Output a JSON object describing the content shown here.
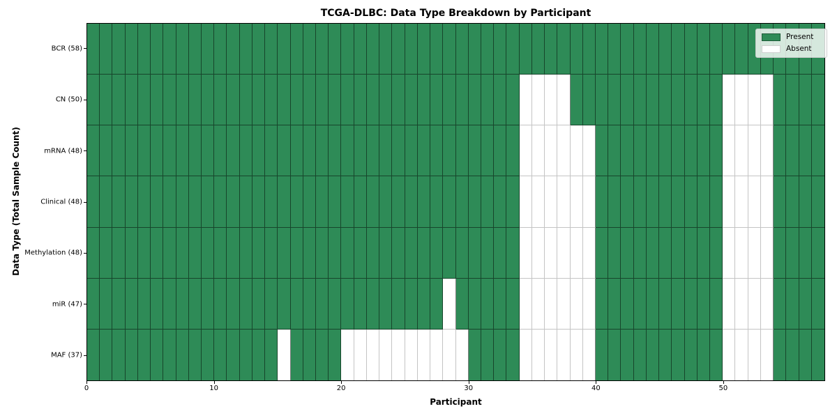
{
  "chart_data": {
    "type": "heatmap",
    "title": "TCGA-DLBC: Data Type Breakdown by Participant",
    "xlabel": "Participant",
    "ylabel": "Data Type (Total Sample Count)",
    "n_participants": 58,
    "x_range": [
      0,
      58
    ],
    "x_ticks": [
      0,
      10,
      20,
      30,
      40,
      50
    ],
    "rows": [
      {
        "label": "BCR (58)",
        "data_type": "BCR",
        "present_count": 58,
        "absent_participants": []
      },
      {
        "label": "CN (50)",
        "data_type": "CN",
        "present_count": 50,
        "absent_participants": [
          34,
          35,
          36,
          37,
          50,
          51,
          52,
          53
        ]
      },
      {
        "label": "mRNA (48)",
        "data_type": "mRNA",
        "present_count": 48,
        "absent_participants": [
          34,
          35,
          36,
          37,
          38,
          39,
          50,
          51,
          52,
          53
        ]
      },
      {
        "label": "Clinical (48)",
        "data_type": "Clinical",
        "present_count": 48,
        "absent_participants": [
          34,
          35,
          36,
          37,
          38,
          39,
          50,
          51,
          52,
          53
        ]
      },
      {
        "label": "Methylation (48)",
        "data_type": "Methylation",
        "present_count": 48,
        "absent_participants": [
          34,
          35,
          36,
          37,
          38,
          39,
          50,
          51,
          52,
          53
        ]
      },
      {
        "label": "miR (47)",
        "data_type": "miR",
        "present_count": 47,
        "absent_participants": [
          28,
          34,
          35,
          36,
          37,
          38,
          39,
          50,
          51,
          52,
          53
        ]
      },
      {
        "label": "MAF (37)",
        "data_type": "MAF",
        "present_count": 37,
        "absent_participants": [
          15,
          20,
          21,
          22,
          23,
          24,
          25,
          26,
          27,
          28,
          29,
          34,
          35,
          36,
          37,
          38,
          39,
          50,
          51,
          52,
          53
        ]
      }
    ],
    "legend": [
      {
        "label": "Present",
        "color": "#2e8b57"
      },
      {
        "label": "Absent",
        "color": "#ffffff"
      }
    ],
    "colors": {
      "present": "#2e8b57",
      "absent": "#ffffff",
      "present_edge": "rgba(0,0,0,0.50)",
      "absent_edge": "#c4c4c4",
      "spine": "#000000"
    },
    "legend_position": "upper right",
    "grid": true
  }
}
